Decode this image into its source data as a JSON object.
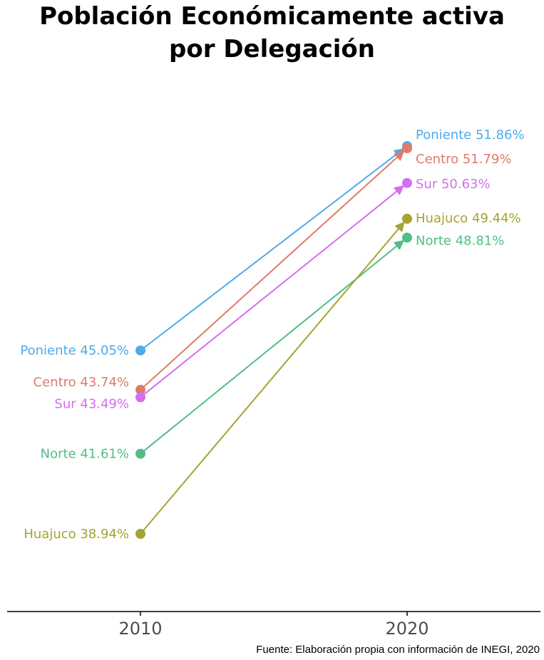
{
  "title_line1": "Población Económicamente activa",
  "title_line2": "por Delegación",
  "source": "Fuente: Elaboración propia con información de INEGI, 2020",
  "chart_data": {
    "type": "line",
    "title": "Población Económicamente activa por Delegación",
    "x": [
      "2010",
      "2020"
    ],
    "xlabel": "",
    "ylabel": "",
    "ylim": [
      36,
      53
    ],
    "grid": false,
    "legend": "none",
    "series": [
      {
        "name": "Poniente",
        "color": "#4eaaeb",
        "values": [
          45.05,
          51.86
        ],
        "start_label": "Poniente 45.05%",
        "end_label": "Poniente 51.86%"
      },
      {
        "name": "Centro",
        "color": "#e07a6a",
        "values": [
          43.74,
          51.79
        ],
        "start_label": "Centro 43.74%",
        "end_label": "Centro 51.79%"
      },
      {
        "name": "Sur",
        "color": "#d66df0",
        "values": [
          43.49,
          50.63
        ],
        "start_label": "Sur 43.49%",
        "end_label": "Sur 50.63%"
      },
      {
        "name": "Norte",
        "color": "#4fbf84",
        "values": [
          41.61,
          48.81
        ],
        "start_label": "Norte 41.61%",
        "end_label": "Norte 48.81%"
      },
      {
        "name": "Huajuco",
        "color": "#a5a331",
        "values": [
          38.94,
          49.44
        ],
        "start_label": "Huajuco 38.94%",
        "end_label": "Huajuco 49.44%"
      }
    ]
  }
}
